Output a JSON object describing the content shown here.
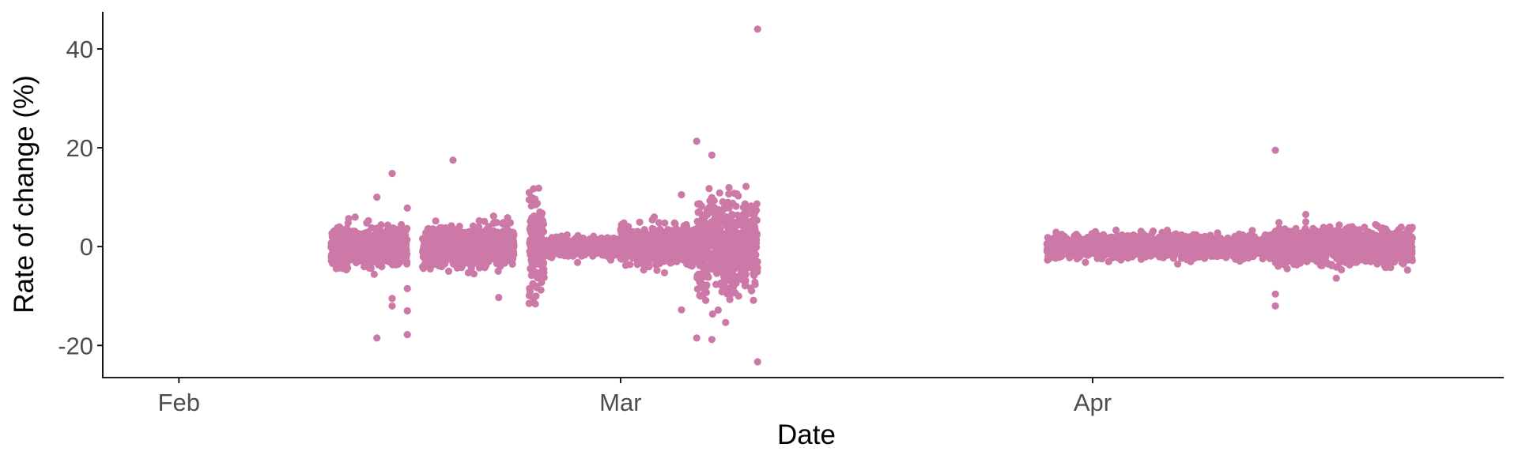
{
  "chart_data": {
    "type": "scatter",
    "xlabel": "Date",
    "ylabel": "Rate of change (%)",
    "x_ticks": [
      {
        "label": "Feb",
        "date": "2020-02-01"
      },
      {
        "label": "Mar",
        "date": "2020-03-01"
      },
      {
        "label": "Apr",
        "date": "2020-04-01"
      }
    ],
    "y_ticks": [
      {
        "label": "-20",
        "value": -20
      },
      {
        "label": "0",
        "value": 0
      },
      {
        "label": "20",
        "value": 20
      },
      {
        "label": "40",
        "value": 40
      }
    ],
    "xlim": [
      "2020-01-27",
      "2020-04-28"
    ],
    "ylim": [
      -26.5,
      47.5
    ],
    "grid": false,
    "legend": "none",
    "point_color": "#CC79A7",
    "series": [
      {
        "clusters": [
          {
            "start": "2020-02-11",
            "end": "2020-02-16",
            "spread": 1.8
          },
          {
            "start": "2020-02-17",
            "end": "2020-02-23",
            "spread": 1.8
          },
          {
            "start": "2020-02-24",
            "end": "2020-02-25",
            "spread": 5.0
          },
          {
            "start": "2020-02-25",
            "end": "2020-03-01",
            "spread": 0.8
          },
          {
            "start": "2020-03-01",
            "end": "2020-03-06",
            "spread": 1.8
          },
          {
            "start": "2020-03-06",
            "end": "2020-03-10",
            "spread": 4.5
          },
          {
            "start": "2020-03-29",
            "end": "2020-04-13",
            "spread": 1.0
          },
          {
            "start": "2020-04-13",
            "end": "2020-04-22",
            "spread": 1.6
          }
        ],
        "points": [
          [
            "2020-03-10",
            44.0
          ],
          [
            "2020-03-10",
            -23.3
          ],
          [
            "2020-04-13",
            19.5
          ],
          [
            "2020-02-19",
            17.5
          ],
          [
            "2020-02-15",
            14.8
          ],
          [
            "2020-02-14",
            10.0
          ],
          [
            "2020-02-16",
            7.8
          ],
          [
            "2020-02-14",
            -18.5
          ],
          [
            "2020-02-16",
            -17.8
          ],
          [
            "2020-02-15",
            -12.0
          ],
          [
            "2020-02-16",
            -13.0
          ],
          [
            "2020-02-16",
            -8.5
          ],
          [
            "2020-02-15",
            -10.5
          ],
          [
            "2020-02-22",
            -10.3
          ],
          [
            "2020-02-24",
            -11.5
          ],
          [
            "2020-02-24",
            9.5
          ],
          [
            "2020-03-06",
            21.3
          ],
          [
            "2020-03-06",
            -18.5
          ],
          [
            "2020-03-07",
            18.5
          ],
          [
            "2020-03-07",
            -18.8
          ],
          [
            "2020-03-05",
            -12.8
          ],
          [
            "2020-03-05",
            10.5
          ],
          [
            "2020-04-13",
            -9.6
          ],
          [
            "2020-04-13",
            -12.0
          ],
          [
            "2020-04-15",
            6.5
          ],
          [
            "2020-04-15",
            5.0
          ]
        ]
      }
    ]
  }
}
